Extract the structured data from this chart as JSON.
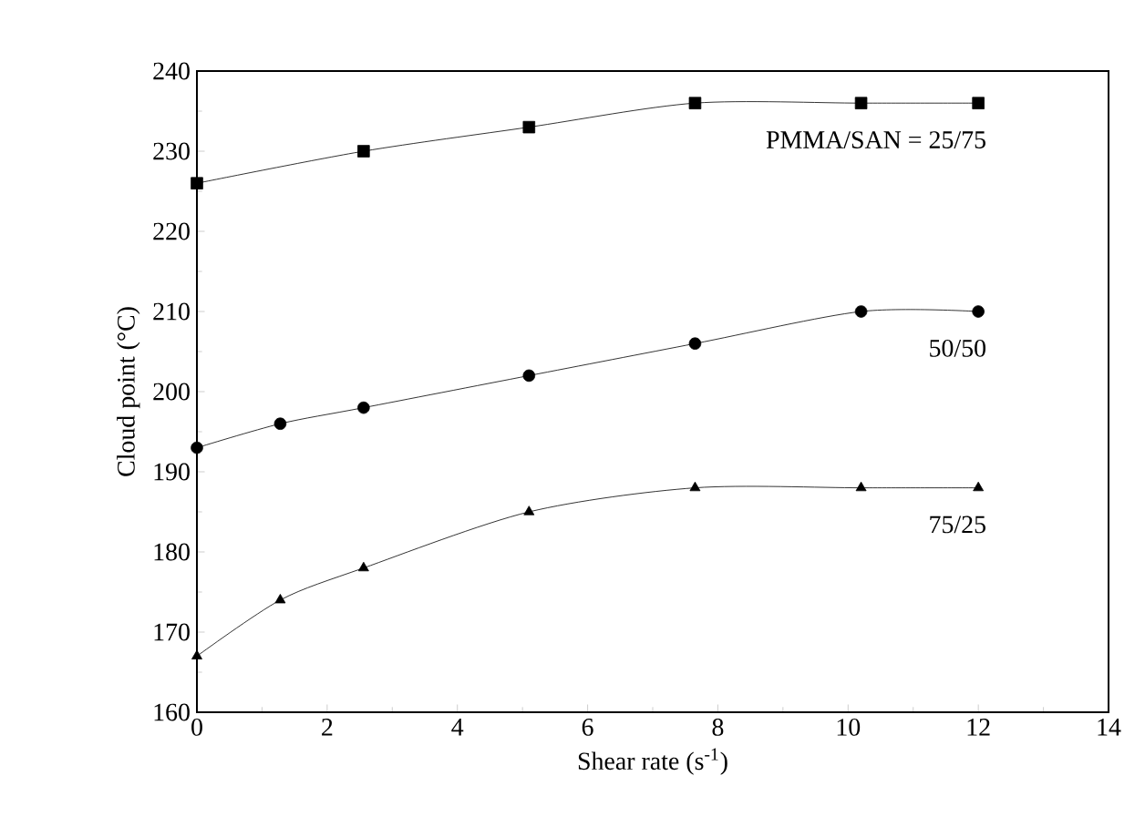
{
  "chart_data": {
    "type": "line",
    "xlabel": "Shear rate (s$^{-1}$)",
    "ylabel": "Cloud point (°C)",
    "xlim": [
      0,
      14
    ],
    "xticks": [
      0,
      2,
      4,
      6,
      8,
      10,
      12,
      14
    ],
    "ylim": [
      160,
      240
    ],
    "yticks": [
      160,
      170,
      180,
      190,
      200,
      210,
      220,
      230,
      240
    ],
    "grid": false,
    "legend": false,
    "series": [
      {
        "name": "PMMA/SAN = 25/75",
        "color": "#000000",
        "marker": "square",
        "x": [
          0,
          2.56,
          5.1,
          7.65,
          10.2,
          12
        ],
        "values": [
          226,
          230,
          233,
          236,
          236,
          236
        ]
      },
      {
        "name": "50/50",
        "color": "#000000",
        "marker": "circle",
        "x": [
          0,
          1.28,
          2.56,
          5.1,
          7.65,
          10.2,
          12
        ],
        "values": [
          193,
          196,
          198,
          202,
          206,
          210,
          210
        ]
      },
      {
        "name": "75/25",
        "color": "#000000",
        "marker": "triangle",
        "x": [
          0,
          1.28,
          2.56,
          5.1,
          7.65,
          10.2,
          12
        ],
        "values": [
          167,
          174,
          178,
          185,
          188,
          188,
          188
        ]
      }
    ]
  }
}
